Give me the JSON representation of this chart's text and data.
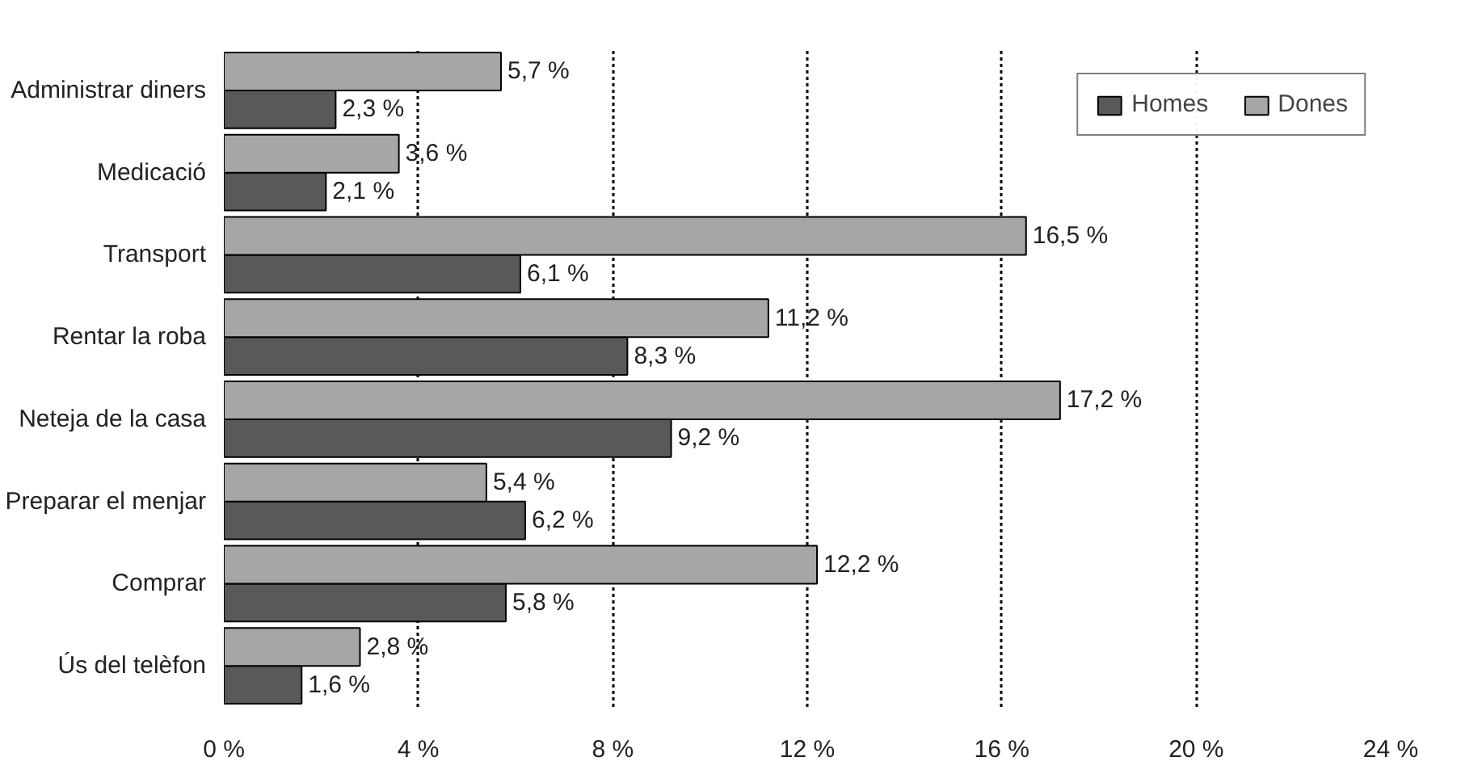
{
  "chart_data": {
    "type": "bar",
    "orientation": "horizontal",
    "categories": [
      "Administrar diners",
      "Medicació",
      "Transport",
      "Rentar la roba",
      "Neteja de la casa",
      "Preparar el menjar",
      "Comprar",
      "Ús del telèfon"
    ],
    "series": [
      {
        "name": "Homes",
        "color": "#595959",
        "values": [
          2.3,
          2.1,
          6.1,
          8.3,
          9.2,
          6.2,
          5.8,
          1.6
        ],
        "value_labels": [
          "2,3 %",
          "2,1 %",
          "6,1 %",
          "8,3 %",
          "9,2 %",
          "6,2 %",
          "5,8 %",
          "1,6 %"
        ]
      },
      {
        "name": "Dones",
        "color": "#a6a6a6",
        "values": [
          5.7,
          3.6,
          16.5,
          11.2,
          17.2,
          5.4,
          12.2,
          2.8
        ],
        "value_labels": [
          "5,7 %",
          "3,6 %",
          "16,5 %",
          "11,2 %",
          "17,2 %",
          "5,4 %",
          "12,2 %",
          "2,8 %"
        ]
      }
    ],
    "xlim": [
      0,
      24
    ],
    "xticks": [
      {
        "value": 0,
        "label": "0 %"
      },
      {
        "value": 4,
        "label": "4 %"
      },
      {
        "value": 8,
        "label": "8 %"
      },
      {
        "value": 12,
        "label": "12 %"
      },
      {
        "value": 16,
        "label": "16 %"
      },
      {
        "value": 20,
        "label": "20 %"
      },
      {
        "value": 24,
        "label": "24 %"
      }
    ],
    "grid": "x",
    "legend": "top right"
  }
}
